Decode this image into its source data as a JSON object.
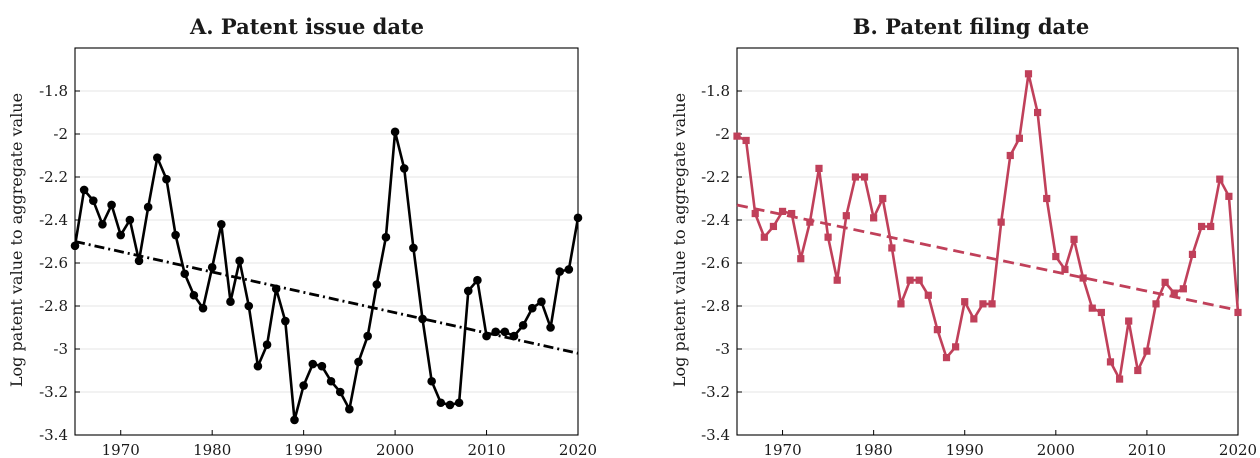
{
  "chart_data": [
    {
      "type": "line",
      "title": "A. Patent issue date",
      "xlabel": "",
      "ylabel": "Log patent value to aggregate value",
      "xlim": [
        1965,
        2020
      ],
      "ylim": [
        -3.4,
        -1.6
      ],
      "grid": "horizontal",
      "xticks": [
        "1970",
        "1980",
        "1990",
        "2000",
        "2010",
        "2020"
      ],
      "yticks": [
        "-1.8",
        "-2",
        "-2.2",
        "-2.4",
        "-2.6",
        "-2.8",
        "-3",
        "-3.2",
        "-3.4"
      ],
      "color": "#000000",
      "marker": "circle",
      "series": [
        {
          "x": [
            1965,
            1966,
            1967,
            1968,
            1969,
            1970,
            1971,
            1972,
            1973,
            1974,
            1975,
            1976,
            1977,
            1978,
            1979,
            1980,
            1981,
            1982,
            1983,
            1984,
            1985,
            1986,
            1987,
            1988,
            1989,
            1990,
            1991,
            1992,
            1993,
            1994,
            1995,
            1996,
            1997,
            1998,
            1999,
            2000,
            2001,
            2002,
            2003,
            2004,
            2005,
            2006,
            2007,
            2008,
            2009,
            2010,
            2011,
            2012,
            2013,
            2014,
            2015,
            2016,
            2017,
            2018,
            2019,
            2020
          ],
          "values": [
            -2.52,
            -2.26,
            -2.31,
            -2.42,
            -2.33,
            -2.47,
            -2.4,
            -2.59,
            -2.34,
            -2.11,
            -2.21,
            -2.47,
            -2.65,
            -2.75,
            -2.81,
            -2.62,
            -2.42,
            -2.78,
            -2.59,
            -2.8,
            -3.08,
            -2.98,
            -2.72,
            -2.87,
            -3.33,
            -3.17,
            -3.07,
            -3.08,
            -3.15,
            -3.2,
            -3.28,
            -3.06,
            -2.94,
            -2.7,
            -2.48,
            -1.99,
            -2.16,
            -2.53,
            -2.86,
            -3.15,
            -3.25,
            -3.26,
            -3.25,
            -2.73,
            -2.68,
            -2.94,
            -2.92,
            -2.92,
            -2.94,
            -2.89,
            -2.81,
            -2.78,
            -2.9,
            -2.64,
            -2.63,
            -2.39
          ]
        }
      ],
      "trend": {
        "style": "dash-dot",
        "x": [
          1965,
          2020
        ],
        "values": [
          -2.5,
          -3.02
        ]
      }
    },
    {
      "type": "line",
      "title": "B. Patent filing date",
      "xlabel": "",
      "ylabel": "Log patent value to aggregate value",
      "xlim": [
        1965,
        2020
      ],
      "ylim": [
        -3.4,
        -1.6
      ],
      "grid": "horizontal",
      "xticks": [
        "1970",
        "1980",
        "1990",
        "2000",
        "2010",
        "2020"
      ],
      "yticks": [
        "-1.8",
        "-2",
        "-2.2",
        "-2.4",
        "-2.6",
        "-2.8",
        "-3",
        "-3.2",
        "-3.4"
      ],
      "color": "#c0405a",
      "marker": "square",
      "series": [
        {
          "x": [
            1965,
            1966,
            1967,
            1968,
            1969,
            1970,
            1971,
            1972,
            1973,
            1974,
            1975,
            1976,
            1977,
            1978,
            1979,
            1980,
            1981,
            1982,
            1983,
            1984,
            1985,
            1986,
            1987,
            1988,
            1989,
            1990,
            1991,
            1992,
            1993,
            1994,
            1995,
            1996,
            1997,
            1998,
            1999,
            2000,
            2001,
            2002,
            2003,
            2004,
            2005,
            2006,
            2007,
            2008,
            2009,
            2010,
            2011,
            2012,
            2013,
            2014,
            2015,
            2016,
            2017,
            2018,
            2019,
            2020
          ],
          "values": [
            -2.01,
            -2.03,
            -2.37,
            -2.48,
            -2.43,
            -2.36,
            -2.37,
            -2.58,
            -2.41,
            -2.16,
            -2.48,
            -2.68,
            -2.38,
            -2.2,
            -2.2,
            -2.39,
            -2.3,
            -2.53,
            -2.79,
            -2.68,
            -2.68,
            -2.75,
            -2.91,
            -3.04,
            -2.99,
            -2.78,
            -2.86,
            -2.79,
            -2.79,
            -2.41,
            -2.1,
            -2.02,
            -1.72,
            -1.9,
            -2.3,
            -2.57,
            -2.63,
            -2.49,
            -2.67,
            -2.81,
            -2.83,
            -3.06,
            -3.14,
            -2.87,
            -3.1,
            -3.01,
            -2.79,
            -2.69,
            -2.74,
            -2.72,
            -2.56,
            -2.43,
            -2.43,
            -2.21,
            -2.29,
            -2.83
          ]
        }
      ],
      "trend": {
        "style": "dashed",
        "x": [
          1965,
          2020
        ],
        "values": [
          -2.33,
          -2.82
        ]
      }
    }
  ]
}
